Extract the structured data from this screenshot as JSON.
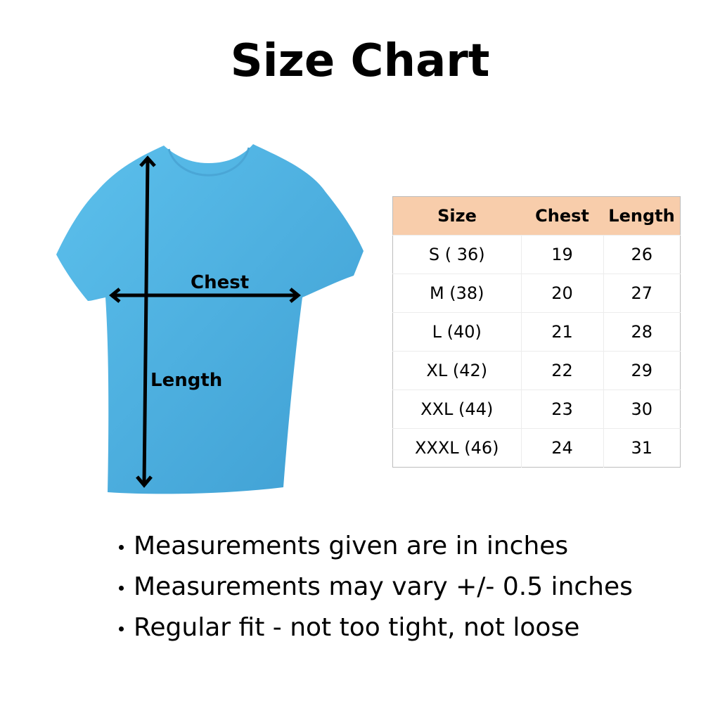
{
  "title": "Size Chart",
  "garment": {
    "color": "#55b6e6",
    "chest_label": "Chest",
    "length_label": "Length"
  },
  "table": {
    "header_color": "#f8cdab",
    "headers": [
      "Size",
      "Chest",
      "Length"
    ],
    "rows": [
      [
        "S ( 36)",
        "19",
        "26"
      ],
      [
        "M (38)",
        "20",
        "27"
      ],
      [
        "L (40)",
        "21",
        "28"
      ],
      [
        "XL (42)",
        "22",
        "29"
      ],
      [
        "XXL (44)",
        "23",
        "30"
      ],
      [
        "XXXL (46)",
        "24",
        "31"
      ]
    ]
  },
  "notes": [
    "Measurements given are in inches",
    "Measurements may vary +/- 0.5 inches",
    "Regular fit - not too tight, not loose"
  ]
}
